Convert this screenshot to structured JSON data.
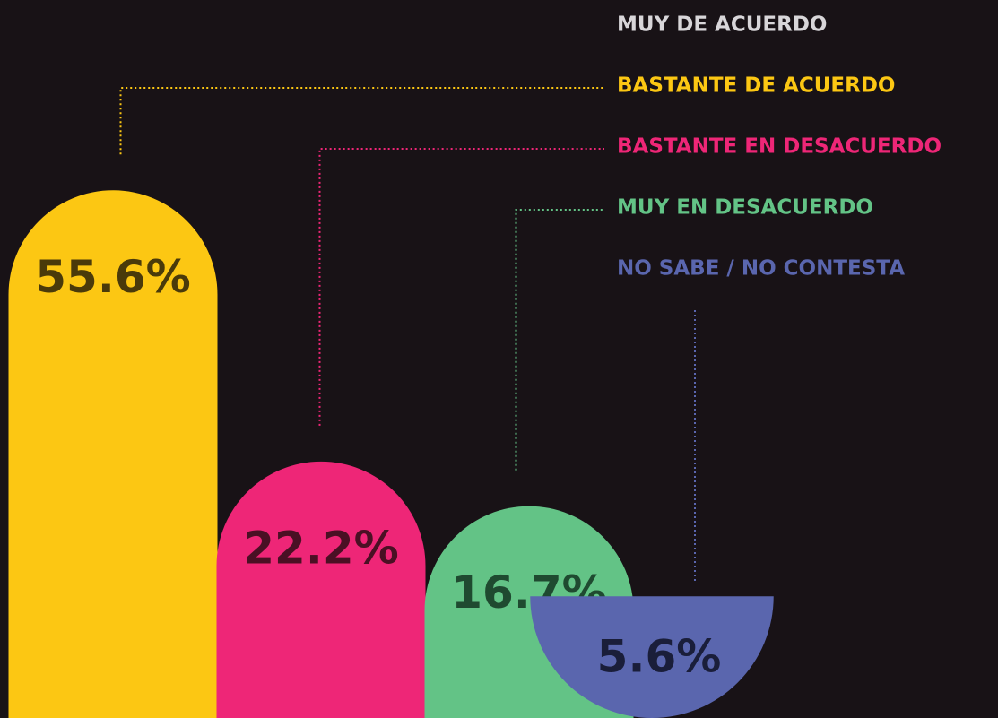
{
  "chart_data": {
    "type": "bar",
    "categories": [
      "MUY DE ACUERDO",
      "BASTANTE DE ACUERDO",
      "BASTANTE EN DESACUERDO",
      "MUY EN DESACUERDO",
      "NO SABE / NO CONTESTA"
    ],
    "values": [
      0,
      55.6,
      22.2,
      16.7,
      5.6
    ],
    "value_labels": [
      null,
      "55.6%",
      "22.2%",
      "16.7%",
      "5.6%"
    ],
    "colors": [
      "#d8d6d9",
      "#fcc713",
      "#ee2677",
      "#63c386",
      "#5a66ae"
    ]
  }
}
